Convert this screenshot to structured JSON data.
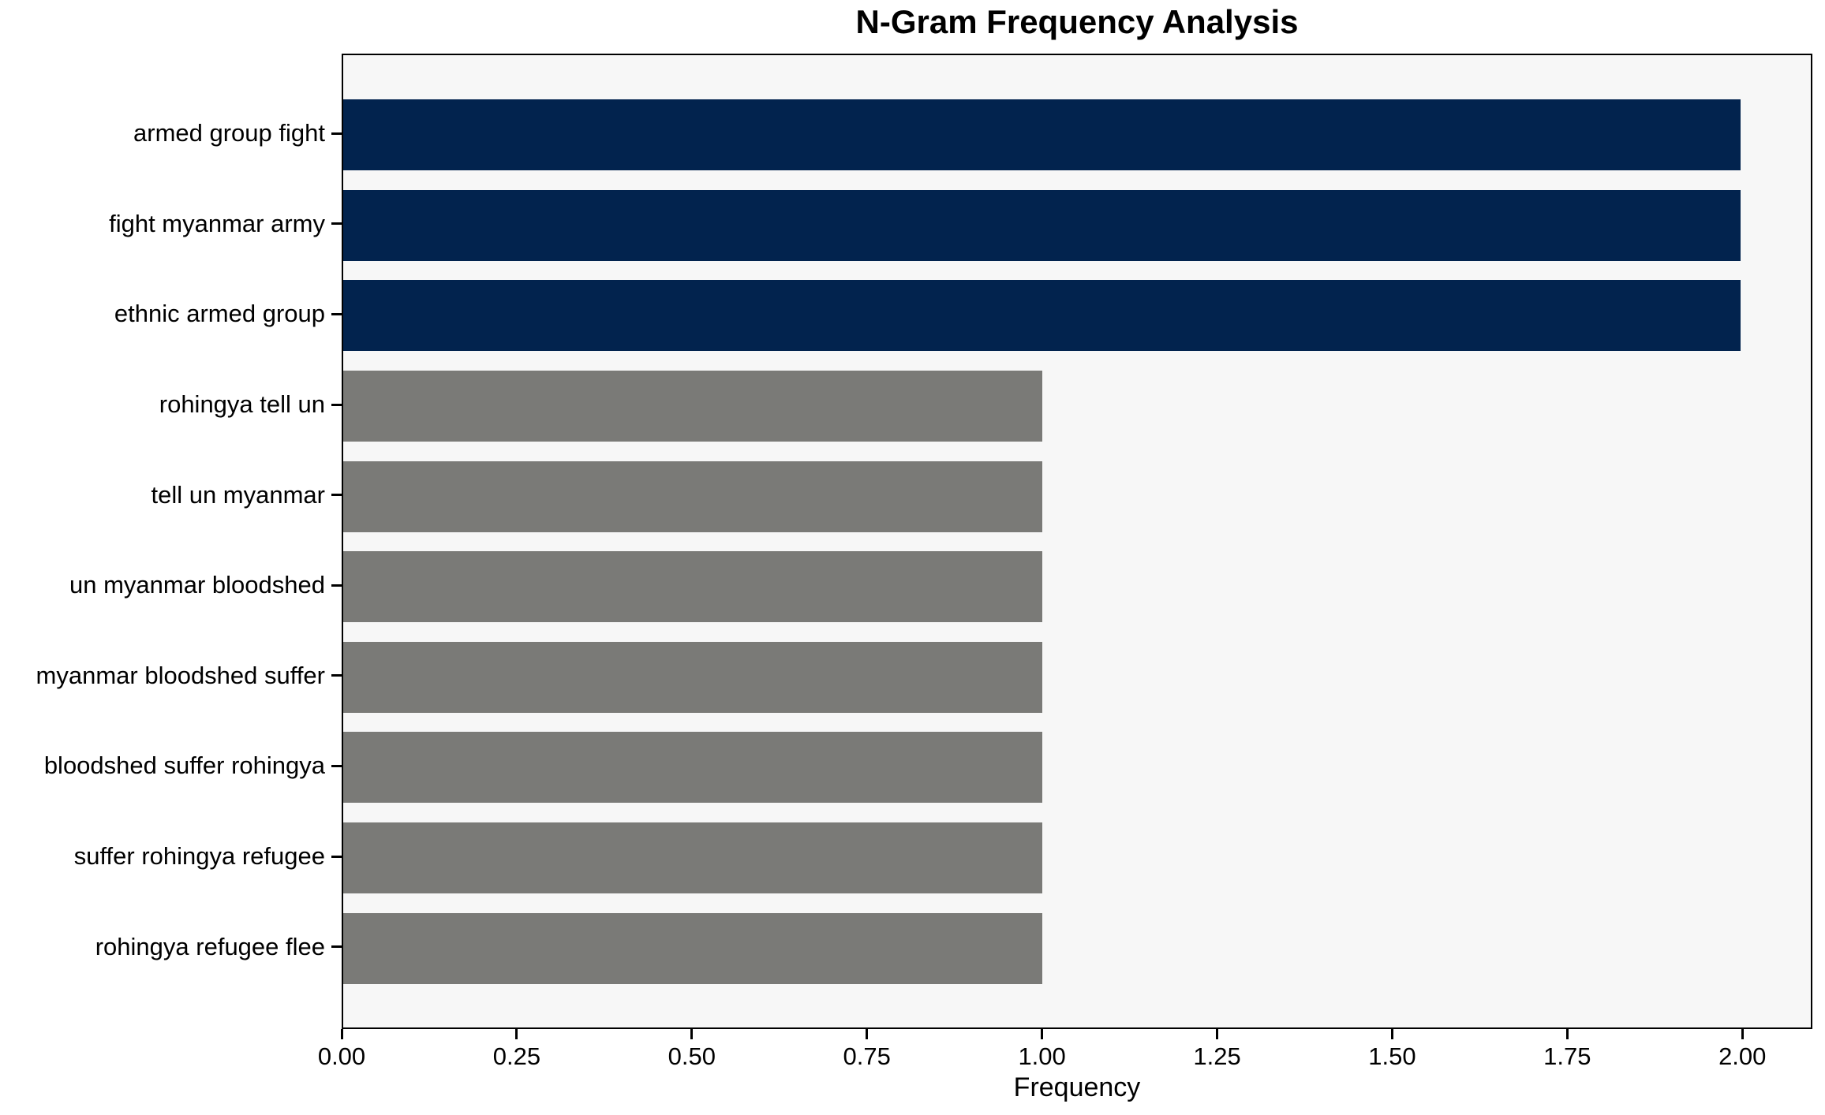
{
  "chart_data": {
    "type": "bar",
    "orientation": "horizontal",
    "title": "N-Gram Frequency Analysis",
    "xlabel": "Frequency",
    "ylabel": "",
    "categories": [
      "armed group fight",
      "fight myanmar army",
      "ethnic armed group",
      "rohingya tell un",
      "tell un myanmar",
      "un myanmar bloodshed",
      "myanmar bloodshed suffer",
      "bloodshed suffer rohingya",
      "suffer rohingya refugee",
      "rohingya refugee flee"
    ],
    "values": [
      2,
      2,
      2,
      1,
      1,
      1,
      1,
      1,
      1,
      1
    ],
    "bar_colors": [
      "#02234e",
      "#02234e",
      "#02234e",
      "#7a7a77",
      "#7a7a77",
      "#7a7a77",
      "#7a7a77",
      "#7a7a77",
      "#7a7a77",
      "#7a7a77"
    ],
    "xlim": [
      0,
      2.1
    ],
    "xticks": [
      0.0,
      0.25,
      0.5,
      0.75,
      1.0,
      1.25,
      1.5,
      1.75,
      2.0
    ],
    "xtick_labels": [
      "0.00",
      "0.25",
      "0.50",
      "0.75",
      "1.00",
      "1.25",
      "1.50",
      "1.75",
      "2.00"
    ],
    "grid": false,
    "legend": null,
    "colors": {
      "highlight_bar": "#02234e",
      "default_bar": "#7a7a77",
      "plot_background": "#f7f7f7",
      "figure_background": "#ffffff",
      "spine": "#000000",
      "text": "#000000"
    }
  }
}
